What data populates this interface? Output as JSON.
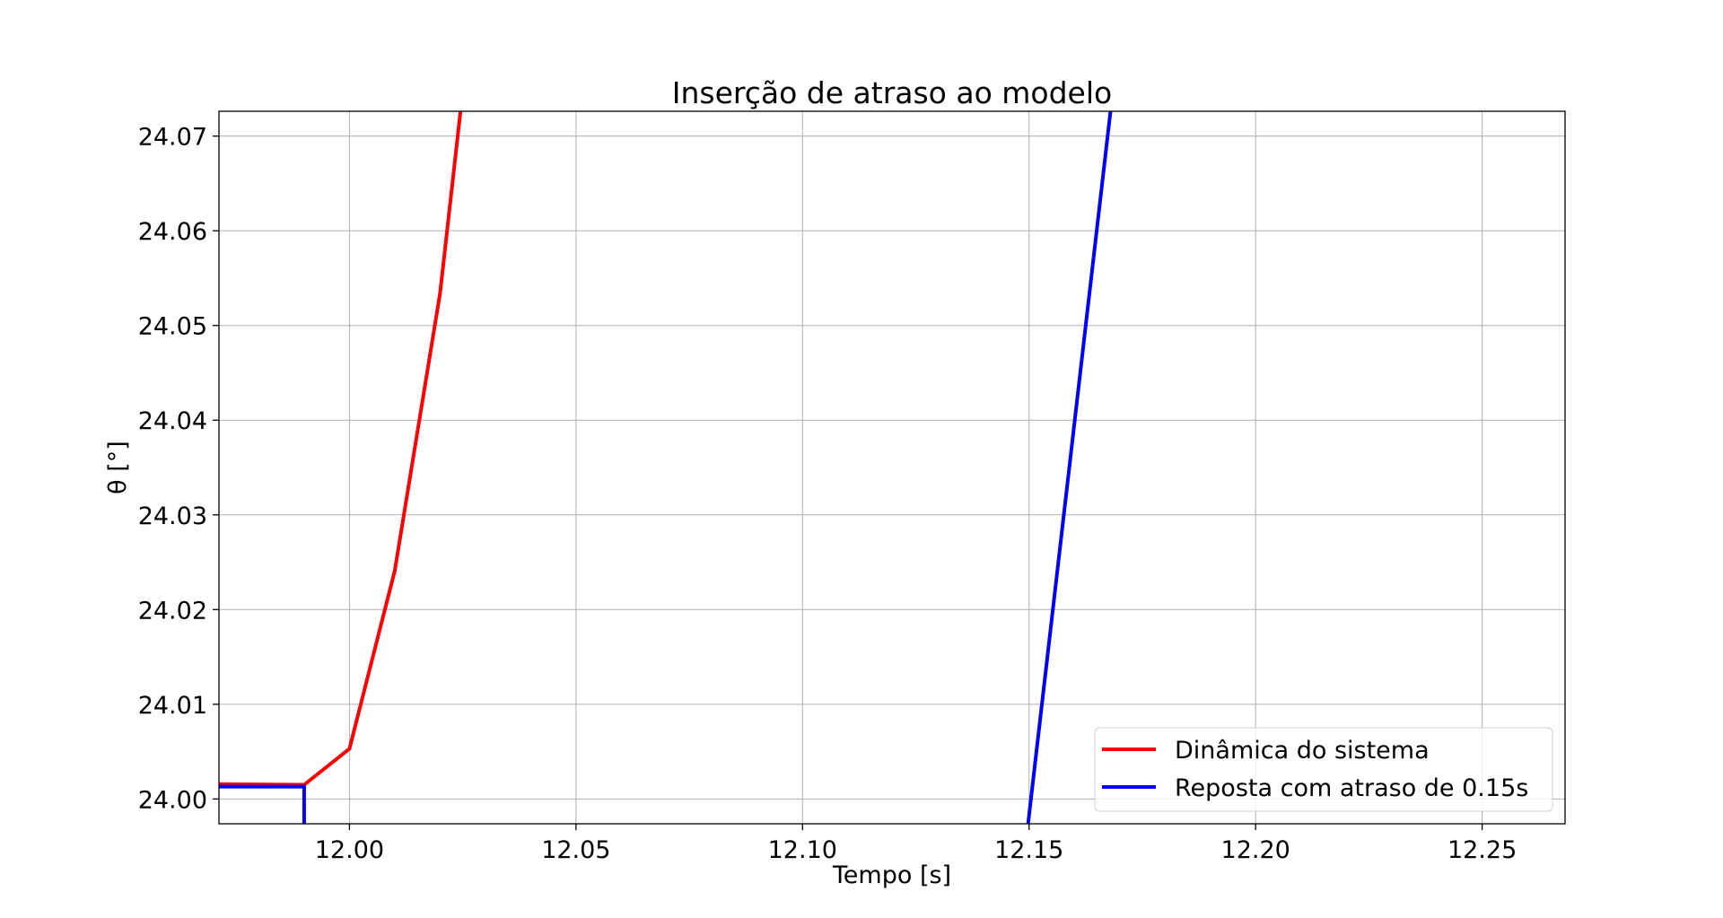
{
  "chart_data": {
    "type": "line",
    "title": "Inserção de atraso ao modelo",
    "xlabel": "Tempo [s]",
    "ylabel": "θ [°]",
    "xlim": [
      11.9712,
      12.2683
    ],
    "ylim": [
      23.99738,
      24.07262
    ],
    "xticks": [
      12.0,
      12.05,
      12.1,
      12.15,
      12.2,
      12.25
    ],
    "xtick_labels": [
      "12.00",
      "12.05",
      "12.10",
      "12.15",
      "12.20",
      "12.25"
    ],
    "yticks": [
      24.0,
      24.01,
      24.02,
      24.03,
      24.04,
      24.05,
      24.06,
      24.07
    ],
    "ytick_labels": [
      "24.00",
      "24.01",
      "24.02",
      "24.03",
      "24.04",
      "24.05",
      "24.06",
      "24.07"
    ],
    "grid": true,
    "legend_position": "lower-right",
    "series": [
      {
        "name": "Dinâmica do sistema",
        "color": "#ff0000",
        "points": [
          [
            11.965,
            24.0016
          ],
          [
            11.99,
            24.0015
          ],
          [
            12.0,
            24.0053
          ],
          [
            12.01,
            24.0241
          ],
          [
            12.02,
            24.0534
          ],
          [
            12.03,
            24.096
          ]
        ]
      },
      {
        "name": "Reposta com atraso de 0.15s",
        "color": "#0000ff",
        "points": [
          [
            11.965,
            24.0013
          ],
          [
            11.99,
            24.0013
          ],
          [
            11.99,
            23.99
          ],
          [
            12.148,
            23.99
          ],
          [
            12.17,
            24.081
          ]
        ]
      }
    ]
  }
}
